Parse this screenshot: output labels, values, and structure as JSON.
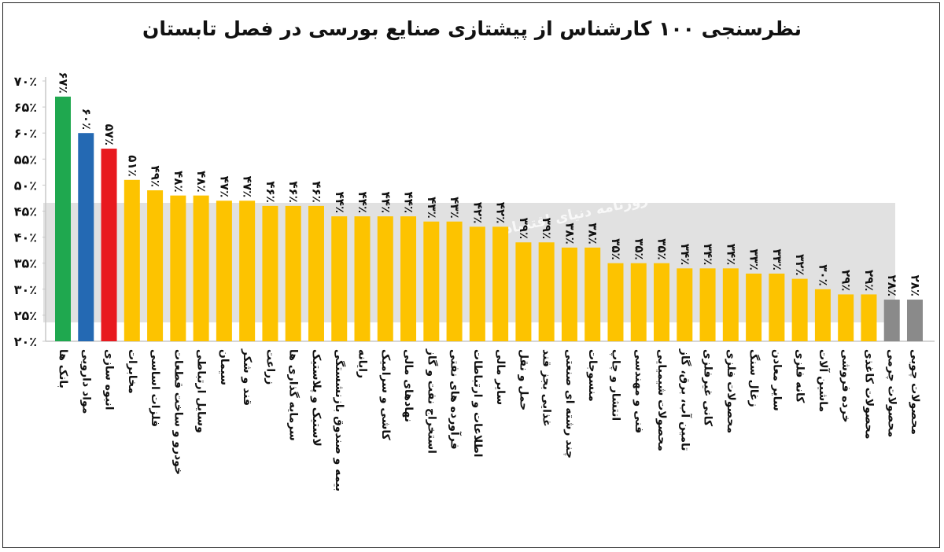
{
  "chart_data": {
    "type": "bar",
    "title": "نظرسنجی ۱۰۰ کارشناس از پیشتازی صنایع بورسی در فصل تابستان",
    "ylim": [
      20,
      70
    ],
    "y_ticks": [
      "۲۰٪",
      "۲۵٪",
      "۳۰٪",
      "۳۵٪",
      "۴۰٪",
      "۴۵٪",
      "۵۰٪",
      "۵۵٪",
      "۶۰٪",
      "۶۵٪",
      "۷۰٪"
    ],
    "grid": false,
    "categories": [
      "بانک ها",
      "مواد دارویی",
      "انبوه سازی",
      "مخابرات",
      "فلزات اساسی",
      "خودرو و ساخت قطعات",
      "وسایل ارتباطی",
      "سیمان",
      "قند و شکر",
      "زراعت",
      "سرمایه گذاری ها",
      "لاستیک و پلاستیک",
      "بیمه و صندوق بازنشستگی",
      "رایانه",
      "کاشی و سرامیک",
      "نهادهای مالی",
      "استخراج نفت و گاز",
      "فرآورده های نفتی",
      "اطلاعات و ارتباطات",
      "سایر مالی",
      "حمل و نقل",
      "غذایی بجز قند",
      "چند رشته ای صنعتی",
      "منسوجات",
      "انتشار و چاپ",
      "فنی و مهندسی",
      "محصولات شیمیایی",
      "تامین آب، برق، گاز",
      "کانی غیرفلزی",
      "محصولات فلزی",
      "زغال سنگ",
      "سایر معادن",
      "کانه فلزی",
      "ماشین آلات",
      "خرده فروشی",
      "محصولات کاغذی",
      "محصولات چرمی",
      "محصولات چوبی"
    ],
    "values": [
      67,
      60,
      57,
      51,
      49,
      48,
      48,
      47,
      47,
      46,
      46,
      46,
      44,
      44,
      44,
      44,
      43,
      43,
      42,
      42,
      39,
      39,
      38,
      38,
      35,
      35,
      35,
      34,
      34,
      34,
      33,
      33,
      32,
      30,
      29,
      29,
      28,
      28
    ],
    "value_labels": [
      "۶۷٪",
      "۶۰٪",
      "۵۷٪",
      "۵۱٪",
      "۴۹٪",
      "۴۸٪",
      "۴۸٪",
      "۴۷٪",
      "۴۷٪",
      "۴۶٪",
      "۴۶٪",
      "۴۶٪",
      "۴۴٪",
      "۴۴٪",
      "۴۴٪",
      "۴۴٪",
      "۴۳٪",
      "۴۳٪",
      "۴۲٪",
      "۴۲٪",
      "۳۹٪",
      "۳۹٪",
      "۳۸٪",
      "۳۸٪",
      "۳۵٪",
      "۳۵٪",
      "۳۵٪",
      "۳۴٪",
      "۳۴٪",
      "۳۴٪",
      "۳۳٪",
      "۳۳٪",
      "۳۲٪",
      "۳۰٪",
      "۲۹٪",
      "۲۹٪",
      "۲۸٪",
      "۲۸٪"
    ],
    "colors": [
      "#1fa84f",
      "#2469b3",
      "#e8191f",
      "#fdc300",
      "#fdc300",
      "#fdc300",
      "#fdc300",
      "#fdc300",
      "#fdc300",
      "#fdc300",
      "#fdc300",
      "#fdc300",
      "#fdc300",
      "#fdc300",
      "#fdc300",
      "#fdc300",
      "#fdc300",
      "#fdc300",
      "#fdc300",
      "#fdc300",
      "#fdc300",
      "#fdc300",
      "#fdc300",
      "#fdc300",
      "#fdc300",
      "#fdc300",
      "#fdc300",
      "#fdc300",
      "#fdc300",
      "#fdc300",
      "#fdc300",
      "#fdc300",
      "#fdc300",
      "#fdc300",
      "#fdc300",
      "#fdc300",
      "#8a8a8a",
      "#8a8a8a"
    ],
    "axis_color": "#c8c8c8",
    "label_color": "#111111"
  },
  "watermark": {
    "text": "روزنامه دنیای اقتصاد"
  }
}
